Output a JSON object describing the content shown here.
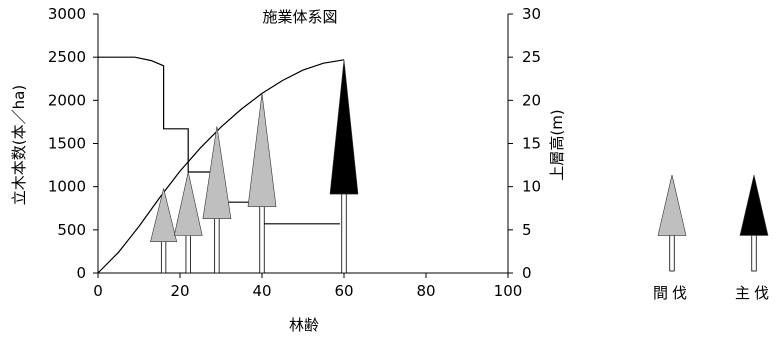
{
  "chart_data": {
    "type": "line",
    "title": "施業体系図",
    "xlabel": "林齢",
    "ylabel_left": "立木本数(本／ha)",
    "ylabel_right": "上層高(m)",
    "xlim": [
      0,
      100
    ],
    "ylim_left": [
      0,
      3000
    ],
    "ylim_right": [
      0,
      30
    ],
    "x_ticks": [
      "0",
      "20",
      "40",
      "60",
      "80",
      "100"
    ],
    "y_left_ticks": [
      "0",
      "500",
      "1000",
      "1500",
      "2000",
      "2500",
      "3000"
    ],
    "y_right_ticks": [
      "0",
      "5",
      "10",
      "15",
      "20",
      "25",
      "30"
    ],
    "series": [
      {
        "axis": "left",
        "step": true,
        "x": [
          0,
          9,
          13,
          16,
          16,
          22,
          22,
          29,
          29,
          40,
          40,
          59
        ],
        "values": [
          2500,
          2500,
          2460,
          2400,
          1670,
          1670,
          1170,
          1170,
          820,
          820,
          570,
          570
        ]
      },
      {
        "axis": "right",
        "x": [
          0,
          5,
          10,
          15,
          20,
          25,
          30,
          35,
          40,
          45,
          50,
          55,
          60
        ],
        "values": [
          0,
          2.4,
          5.4,
          8.7,
          11.8,
          14.5,
          16.9,
          19.0,
          20.8,
          22.3,
          23.5,
          24.3,
          24.7
        ]
      }
    ],
    "trees": [
      {
        "age": 16,
        "height": 9.8,
        "type": "thinning"
      },
      {
        "age": 22,
        "height": 11.7,
        "type": "thinning"
      },
      {
        "age": 29,
        "height": 17.0,
        "type": "thinning"
      },
      {
        "age": 40,
        "height": 20.8,
        "type": "thinning"
      },
      {
        "age": 60,
        "height": 24.7,
        "type": "final"
      }
    ],
    "legend": [
      {
        "label": "間伐",
        "color": "#bfbfbf"
      },
      {
        "label": "主伐",
        "color": "#000000"
      }
    ],
    "colors": {
      "thinning": "#bfbfbf",
      "final": "#000000",
      "line": "#000000"
    }
  }
}
